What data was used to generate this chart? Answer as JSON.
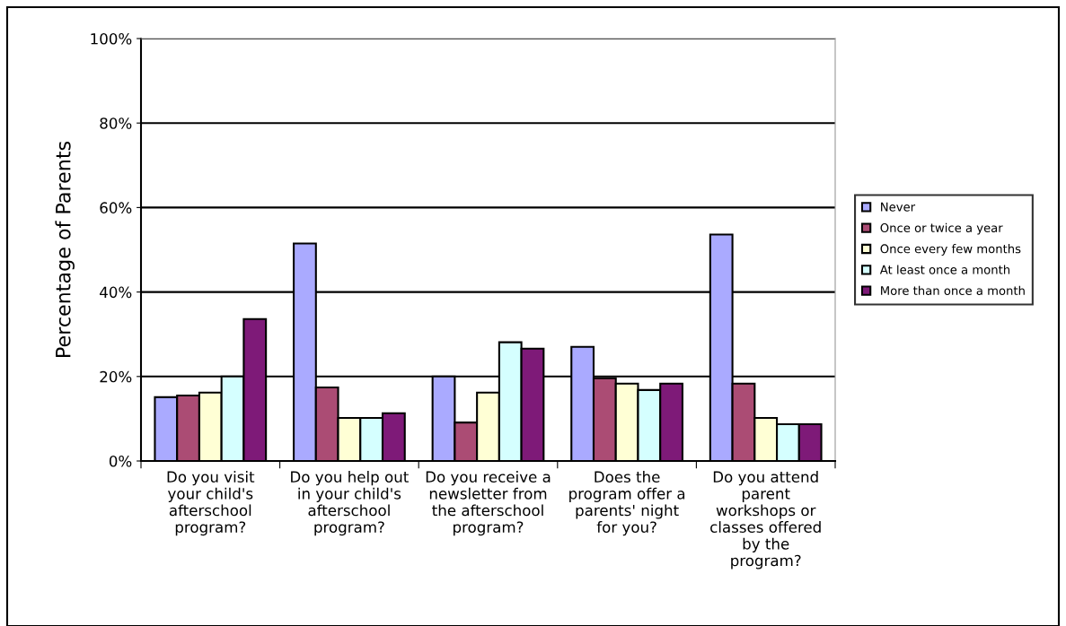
{
  "chart_data": {
    "type": "bar",
    "ylabel": "Percentage of Parents",
    "categories": [
      "Do you visit\nyour child's\nafterschool\nprogram?",
      "Do you help out\nin your child's\nafterschool\nprogram?",
      "Do you receive a\nnewsletter from\nthe afterschool\nprogram?",
      "Does the\nprogram offer a\nparents' night\nfor you?",
      "Do you attend\nparent\nworkshops or\nclasses offered\nby the\nprogram?"
    ],
    "series": [
      {
        "name": "Never",
        "color": "#aaaaff",
        "values": [
          15.1,
          51.5,
          20,
          27,
          53.6
        ]
      },
      {
        "name": "Once or twice a year",
        "color": "#ab4c74",
        "values": [
          15.5,
          17.4,
          9.1,
          19.6,
          18.3
        ]
      },
      {
        "name": "Once every few months",
        "color": "#ffffd5",
        "values": [
          16.2,
          10.2,
          16.2,
          18.3,
          10.2
        ]
      },
      {
        "name": "At least once a month",
        "color": "#d5ffff",
        "values": [
          20,
          10.2,
          28.1,
          16.8,
          8.7
        ]
      },
      {
        "name": "More than once a month",
        "color": "#7e1a78",
        "values": [
          33.6,
          11.3,
          26.6,
          18.3,
          8.7
        ]
      }
    ],
    "ylim": [
      0,
      100
    ],
    "yticks": [
      {
        "value": 0,
        "label": "0%"
      },
      {
        "value": 20,
        "label": "20%"
      },
      {
        "value": 40,
        "label": "40%"
      },
      {
        "value": 60,
        "label": "60%"
      },
      {
        "value": 80,
        "label": "80%"
      },
      {
        "value": 100,
        "label": "100%"
      }
    ],
    "grid": "y",
    "legend": "right"
  }
}
